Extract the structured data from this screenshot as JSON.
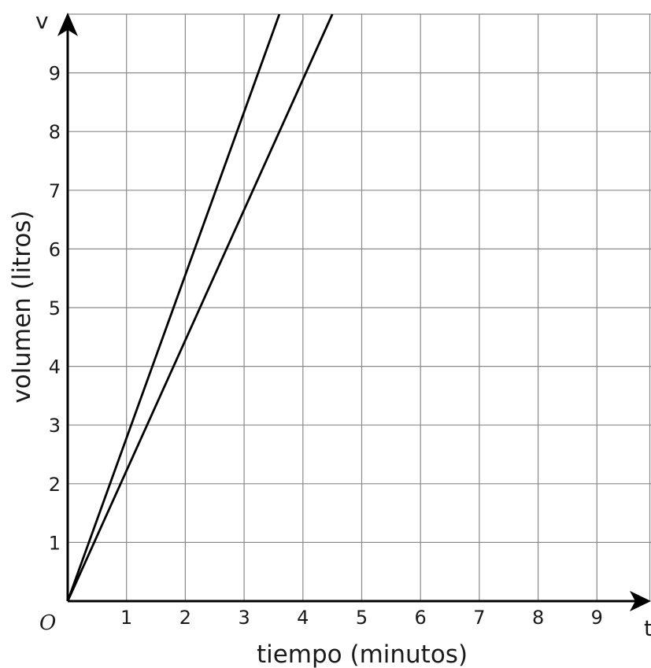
{
  "chart_data": {
    "type": "line",
    "xlabel": "tiempo (minutos)",
    "ylabel": "volumen (litros)",
    "x_axis_letter": "t",
    "y_axis_letter": "v",
    "origin_label": "O",
    "xlim": [
      0,
      9.9
    ],
    "ylim": [
      0,
      10
    ],
    "x_ticks": [
      "1",
      "2",
      "3",
      "4",
      "5",
      "6",
      "7",
      "8",
      "9"
    ],
    "y_ticks": [
      "1",
      "2",
      "3",
      "4",
      "5",
      "6",
      "7",
      "8",
      "9"
    ],
    "grid": true,
    "series": [
      {
        "x": [
          0,
          3.6
        ],
        "y": [
          0,
          10
        ],
        "color": "#000000"
      },
      {
        "x": [
          0,
          4.5
        ],
        "y": [
          0,
          10
        ],
        "color": "#000000"
      }
    ]
  }
}
